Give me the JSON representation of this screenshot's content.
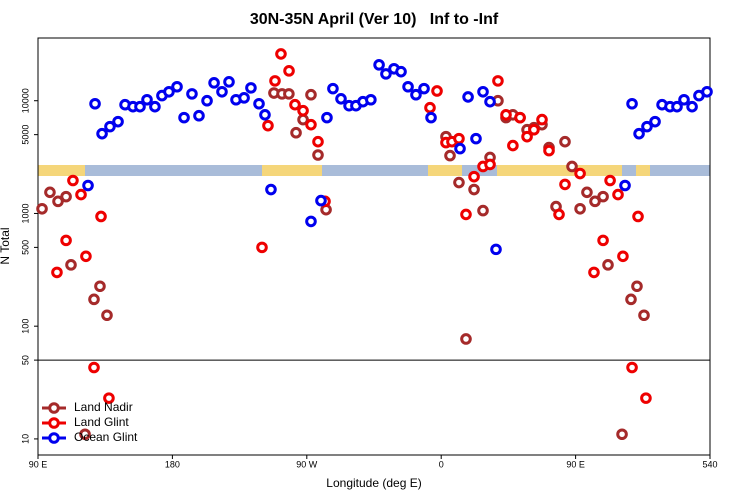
{
  "chart_data": {
    "type": "scatter",
    "title": "30N-35N April (Ver 10)   Inf to -Inf",
    "x_label": "Longitude (deg E)",
    "y_label": "N Total",
    "xlim": [
      90,
      540
    ],
    "xticks": [
      {
        "value": 90,
        "label": "90 E"
      },
      180,
      {
        "value": 270,
        "label": "90 W"
      },
      {
        "value": 360,
        "label": "0"
      },
      {
        "value": 450,
        "label": "90 E"
      },
      540
    ],
    "ylim": [
      7.2,
      36000
    ],
    "yticks": [
      10,
      50,
      100,
      500,
      1000,
      5000,
      10000
    ],
    "log_y": true,
    "hline": 50,
    "legend": "lower left",
    "series": [
      {
        "name": "Land Nadir",
        "color": "#a52a2a",
        "x": [
          92.7,
          98.0,
          103.4,
          108.8,
          112.1,
          127.5,
          131.5,
          136.2,
          121.5,
          248,
          253.4,
          258,
          262.8,
          267.5,
          272.8,
          277.5,
          282.9,
          365.9,
          363.2,
          371.9,
          376.6,
          382,
          388,
          392.7,
          398,
          403.4,
          408,
          412.8,
          417.5,
          422.1,
          427.5,
          432.2,
          436.9,
          442.9,
          447.6,
          453,
          457.6,
          463,
          468.4,
          471.7,
          487.1,
          491.1,
          495.8,
          481.1
        ],
        "values": [
          1100,
          1540,
          1280,
          1410,
          350,
          173,
          226,
          125,
          11,
          11700,
          11500,
          11500,
          5200,
          6800,
          11300,
          3300,
          1080,
          3260,
          4800,
          1880,
          77,
          1630,
          1060,
          3140,
          10000,
          7080,
          7500,
          7080,
          5530,
          5760,
          6130,
          3840,
          1150,
          4330,
          2610,
          1100,
          1540,
          1280,
          1410,
          350,
          173,
          226,
          125,
          11
        ]
      },
      {
        "name": "Land Glint",
        "color": "#ee0000",
        "x": [
          102.7,
          108.8,
          113.4,
          118.8,
          122.1,
          132.2,
          127.5,
          137.5,
          240,
          244,
          248.7,
          252.7,
          258.1,
          262.1,
          267.5,
          272.8,
          277.5,
          282.2,
          352.5,
          357.2,
          363.2,
          367.2,
          371.9,
          376.6,
          382,
          388,
          392.7,
          398,
          403.4,
          408,
          412.8,
          417.5,
          422.1,
          427.5,
          432.2,
          438.9,
          442.9,
          453,
          462.3,
          468.4,
          473.1,
          478.4,
          481.7,
          491.8,
          487.8,
          497.1
        ],
        "values": [
          300,
          577,
          1960,
          1470,
          417,
          940,
          43,
          23,
          500,
          6010,
          15000,
          26000,
          18400,
          9220,
          8160,
          6130,
          4330,
          1280,
          8670,
          12200,
          4250,
          4330,
          4610,
          980,
          2120,
          2610,
          2720,
          15000,
          7500,
          4000,
          7080,
          4800,
          5530,
          6800,
          3610,
          980,
          1810,
          2260,
          300,
          577,
          1960,
          1470,
          417,
          940,
          43,
          23
        ]
      },
      {
        "name": "Ocean Glint",
        "color": "#0000ee",
        "x": [
          123.5,
          128.2,
          132.9,
          138.2,
          143.6,
          148.3,
          153.6,
          158.3,
          163,
          168.3,
          173,
          177.7,
          183.1,
          187.8,
          193.1,
          197.8,
          203.2,
          207.9,
          213.2,
          217.9,
          222.6,
          228,
          232.6,
          238,
          242,
          246,
          272.8,
          279.5,
          283.5,
          287.5,
          292.9,
          298.3,
          302.9,
          307.6,
          312.9,
          318.4,
          323,
          328.4,
          333.1,
          337.8,
          343.1,
          348.5,
          353.2,
          372.6,
          378,
          383.3,
          388,
          392.7,
          396.7,
          483.1,
          487.8,
          492.5,
          497.8,
          503.2,
          507.9,
          513.2,
          517.9,
          522.6,
          528,
          532.6,
          538
        ],
        "values": [
          1770,
          9400,
          5100,
          5890,
          6520,
          9220,
          8850,
          8850,
          10200,
          8850,
          11100,
          12000,
          13300,
          7080,
          11500,
          7360,
          10000,
          14400,
          12000,
          14700,
          10200,
          10600,
          13000,
          9400,
          7500,
          1630,
          850,
          1300,
          7080,
          12800,
          10400,
          9030,
          9030,
          9800,
          10200,
          20800,
          17300,
          19200,
          18100,
          13300,
          11300,
          12800,
          7080,
          3760,
          10800,
          4610,
          12000,
          9800,
          480,
          1770,
          9400,
          5100,
          5890,
          6520,
          9220,
          8850,
          8850,
          10200,
          8850,
          11100,
          12000
        ]
      }
    ]
  }
}
